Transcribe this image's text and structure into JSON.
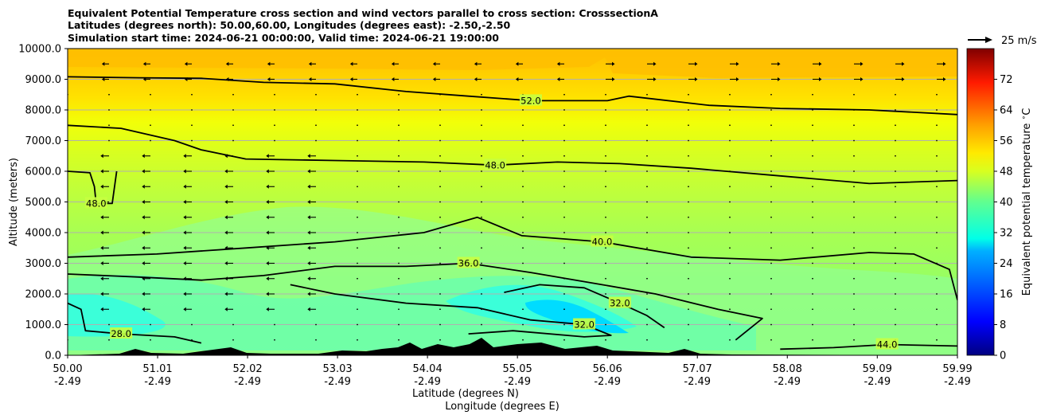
{
  "chart_data": {
    "type": "heatmap",
    "title_lines": [
      "Equivalent Potential Temperature cross section and wind vectors parallel to cross section: CrosssectionA",
      "Latitudes (degrees north): 50.00,60.00, Longitudes (degrees east): -2.50,-2.50",
      "Simulation start time: 2024-06-21 00:00:00, Valid time: 2024-06-21 19:00:00"
    ],
    "xlabel_lines": [
      "Latitude (degrees N)",
      "Longitude (degrees E)"
    ],
    "ylabel": "Altitude (meters)",
    "xlim": [
      50.0,
      59.99
    ],
    "ylim": [
      0,
      10000
    ],
    "x_ticks": [
      {
        "lat": "50.00",
        "lon": "-2.49",
        "value": 50.0
      },
      {
        "lat": "51.01",
        "lon": "-2.49",
        "value": 51.01
      },
      {
        "lat": "52.02",
        "lon": "-2.49",
        "value": 52.02
      },
      {
        "lat": "53.03",
        "lon": "-2.49",
        "value": 53.03
      },
      {
        "lat": "54.04",
        "lon": "-2.49",
        "value": 54.04
      },
      {
        "lat": "55.05",
        "lon": "-2.49",
        "value": 55.05
      },
      {
        "lat": "56.06",
        "lon": "-2.49",
        "value": 56.06
      },
      {
        "lat": "57.07",
        "lon": "-2.49",
        "value": 57.07
      },
      {
        "lat": "58.08",
        "lon": "-2.49",
        "value": 58.08
      },
      {
        "lat": "59.09",
        "lon": "-2.49",
        "value": 59.09
      },
      {
        "lat": "59.99",
        "lon": "-2.49",
        "value": 59.99
      }
    ],
    "y_ticks": [
      "0.0",
      "1000.0",
      "2000.0",
      "3000.0",
      "4000.0",
      "5000.0",
      "6000.0",
      "7000.0",
      "8000.0",
      "9000.0",
      "10000.0"
    ],
    "grid": "horizontal",
    "colorbar": {
      "label": "Equivalent potential temperature $^\\circ$C",
      "range": [
        0,
        80
      ],
      "ticks": [
        "0",
        "8",
        "16",
        "24",
        "32",
        "40",
        "48",
        "56",
        "64",
        "72"
      ]
    },
    "wind_key": {
      "label": "25 m/s",
      "speed": 25
    },
    "contours": [
      {
        "level": 52,
        "label": "52.0",
        "points": [
          [
            50.0,
            9080
          ],
          [
            50.8,
            9050
          ],
          [
            51.5,
            9030
          ],
          [
            52.2,
            8900
          ],
          [
            53.0,
            8850
          ],
          [
            53.8,
            8600
          ],
          [
            54.5,
            8450
          ],
          [
            55.2,
            8300
          ],
          [
            56.06,
            8300
          ],
          [
            56.3,
            8450
          ],
          [
            57.2,
            8150
          ],
          [
            58.0,
            8050
          ],
          [
            59.0,
            8000
          ],
          [
            59.99,
            7850
          ]
        ]
      },
      {
        "level": 48,
        "label": "48.0",
        "points": [
          [
            50.0,
            7500
          ],
          [
            50.6,
            7400
          ],
          [
            51.2,
            7000
          ],
          [
            51.5,
            6700
          ],
          [
            52.0,
            6400
          ],
          [
            53.0,
            6350
          ],
          [
            54.0,
            6300
          ],
          [
            54.8,
            6200
          ],
          [
            55.5,
            6300
          ],
          [
            56.2,
            6250
          ],
          [
            57.0,
            6100
          ],
          [
            58.0,
            5850
          ],
          [
            59.0,
            5600
          ],
          [
            59.99,
            5700
          ]
        ]
      },
      {
        "level": 48,
        "label": "48.0",
        "points": [
          [
            50.0,
            6000
          ],
          [
            50.25,
            5950
          ],
          [
            50.3,
            5500
          ],
          [
            50.32,
            4950
          ],
          [
            50.5,
            4950
          ],
          [
            50.55,
            6000
          ]
        ]
      },
      {
        "level": 40,
        "label": "40.0",
        "points": [
          [
            50.0,
            3200
          ],
          [
            51.0,
            3300
          ],
          [
            52.0,
            3500
          ],
          [
            53.0,
            3700
          ],
          [
            54.0,
            4000
          ],
          [
            54.6,
            4500
          ],
          [
            55.1,
            3900
          ],
          [
            56.0,
            3700
          ],
          [
            57.0,
            3200
          ],
          [
            58.0,
            3100
          ],
          [
            59.0,
            3350
          ],
          [
            59.5,
            3300
          ],
          [
            59.9,
            2800
          ],
          [
            59.99,
            1800
          ]
        ]
      },
      {
        "level": 36,
        "label": "36.0",
        "points": [
          [
            50.0,
            2650
          ],
          [
            50.8,
            2550
          ],
          [
            51.5,
            2450
          ],
          [
            52.2,
            2600
          ],
          [
            53.0,
            2900
          ],
          [
            53.8,
            2900
          ],
          [
            54.5,
            3000
          ],
          [
            55.2,
            2700
          ],
          [
            56.0,
            2300
          ],
          [
            56.6,
            2000
          ],
          [
            57.3,
            1500
          ],
          [
            57.8,
            1200
          ],
          [
            57.5,
            500
          ]
        ]
      },
      {
        "level": 32,
        "label": "32.0",
        "points": [
          [
            52.5,
            2300
          ],
          [
            53.0,
            2000
          ],
          [
            53.8,
            1700
          ],
          [
            54.6,
            1550
          ],
          [
            55.2,
            1150
          ],
          [
            55.8,
            1000
          ],
          [
            56.1,
            650
          ],
          [
            55.8,
            600
          ],
          [
            55.0,
            800
          ],
          [
            54.5,
            700
          ]
        ]
      },
      {
        "level": 32,
        "label": "32.0",
        "points": [
          [
            54.9,
            2050
          ],
          [
            55.3,
            2300
          ],
          [
            55.8,
            2200
          ],
          [
            56.2,
            1700
          ],
          [
            56.5,
            1300
          ],
          [
            56.7,
            900
          ]
        ]
      },
      {
        "level": 28,
        "label": "28.0",
        "points": [
          [
            50.0,
            1700
          ],
          [
            50.15,
            1500
          ],
          [
            50.2,
            800
          ],
          [
            50.6,
            700
          ],
          [
            51.2,
            600
          ],
          [
            51.5,
            400
          ]
        ]
      },
      {
        "level": 44,
        "label": "44.0",
        "points": [
          [
            58.0,
            200
          ],
          [
            58.6,
            250
          ],
          [
            59.2,
            350
          ],
          [
            59.99,
            300
          ]
        ]
      }
    ]
  }
}
